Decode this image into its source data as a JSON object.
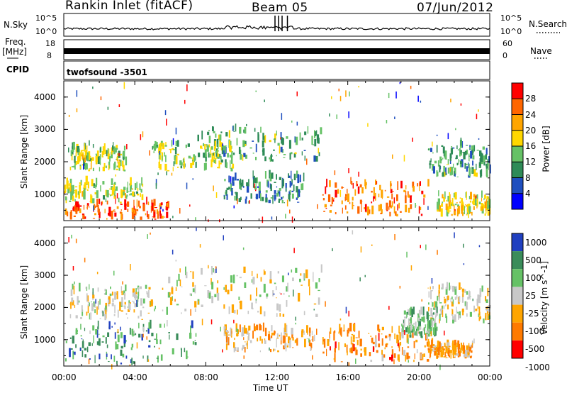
{
  "header": {
    "station": "Rankin Inlet (fitACF)",
    "beam": "Beam 05",
    "date": "07/Jun/2012"
  },
  "summary": {
    "nsky_label": "N.Sky",
    "nsky_ticks": [
      "10^5",
      "10^0"
    ],
    "nsearch_label": "N.Search",
    "freq_label": "Freq.",
    "freq_unit": "[MHz]",
    "freq_ticks": [
      "18",
      "8"
    ],
    "nave_label": "Nave",
    "nave_ticks": [
      "60",
      "0"
    ],
    "cpid_label": "CPID",
    "cpid_text": "twofsound  -3501"
  },
  "colors": {
    "power": [
      "#0000ff",
      "#1f4fbf",
      "#2e8b57",
      "#66c266",
      "#ffd700",
      "#ffa500",
      "#ff6600",
      "#ff0000"
    ],
    "velocity": [
      "#2040c0",
      "#3a8c5a",
      "#66c266",
      "#c8c8c8",
      "#ffa500",
      "#ff7a00",
      "#ff0000"
    ]
  },
  "chart_data": [
    {
      "type": "heatmap",
      "title": "Power",
      "ylabel": "Slant Range [km]",
      "xlabel": "",
      "y_ticks": [
        1000,
        2000,
        3000,
        4000
      ],
      "ylim": [
        180,
        4500
      ],
      "colorbar": {
        "label": "Power [dB]",
        "ticks": [
          "4",
          "8",
          "12",
          "16",
          "20",
          "24",
          "28"
        ],
        "range": [
          0,
          30
        ]
      },
      "regions": [
        {
          "x": [
            0.0,
            6.0
          ],
          "y": [
            200,
            700
          ],
          "level": 6.2
        },
        {
          "x": [
            0.0,
            4.5
          ],
          "y": [
            700,
            1300
          ],
          "level": 3.6
        },
        {
          "x": [
            0.3,
            3.5
          ],
          "y": [
            1700,
            2400
          ],
          "level": 3.4
        },
        {
          "x": [
            5.0,
            9.5
          ],
          "y": [
            1700,
            2500
          ],
          "level": 3.2
        },
        {
          "x": [
            7.5,
            14.5
          ],
          "y": [
            2000,
            3000
          ],
          "level": 2.5
        },
        {
          "x": [
            9.0,
            13.5
          ],
          "y": [
            700,
            1500
          ],
          "level": 2.0
        },
        {
          "x": [
            14.5,
            20.5
          ],
          "y": [
            300,
            1300
          ],
          "level": 5.8
        },
        {
          "x": [
            20.5,
            24.0
          ],
          "y": [
            1500,
            2500
          ],
          "level": 2.4
        },
        {
          "x": [
            21.0,
            24.0
          ],
          "y": [
            300,
            900
          ],
          "level": 4.0
        }
      ]
    },
    {
      "type": "heatmap",
      "title": "Velocity",
      "ylabel": "Slant Range [km]",
      "xlabel": "Time UT",
      "y_ticks": [
        1000,
        2000,
        3000,
        4000
      ],
      "ylim": [
        180,
        4500
      ],
      "colorbar": {
        "label": "Velocity [m s^-1]",
        "ticks": [
          "1000",
          "500",
          "100",
          "25",
          "-25",
          "-100",
          "-500",
          "-1000"
        ],
        "range": [
          -1000,
          1000
        ]
      },
      "regions": [
        {
          "x": [
            0.0,
            7.5
          ],
          "y": [
            200,
            1400
          ],
          "level": 1.3
        },
        {
          "x": [
            0.3,
            5.0
          ],
          "y": [
            1600,
            2600
          ],
          "level": 3.0
        },
        {
          "x": [
            5.5,
            14.5
          ],
          "y": [
            1700,
            3100
          ],
          "level": 3.0
        },
        {
          "x": [
            9.0,
            14.0
          ],
          "y": [
            600,
            1300
          ],
          "level": 4.1
        },
        {
          "x": [
            14.5,
            20.5
          ],
          "y": [
            300,
            1300
          ],
          "level": 4.6
        },
        {
          "x": [
            20.5,
            23.0
          ],
          "y": [
            400,
            800
          ],
          "level": 4.3
        },
        {
          "x": [
            20.5,
            24.0
          ],
          "y": [
            1500,
            2600
          ],
          "level": 3.0
        },
        {
          "x": [
            19.0,
            21.0
          ],
          "y": [
            1000,
            1800
          ],
          "level": 2.1
        }
      ]
    }
  ],
  "x_axis": {
    "ticks": [
      "00:00",
      "04:00",
      "08:00",
      "12:00",
      "16:00",
      "20:00",
      "00:00"
    ],
    "label": "Time UT"
  }
}
